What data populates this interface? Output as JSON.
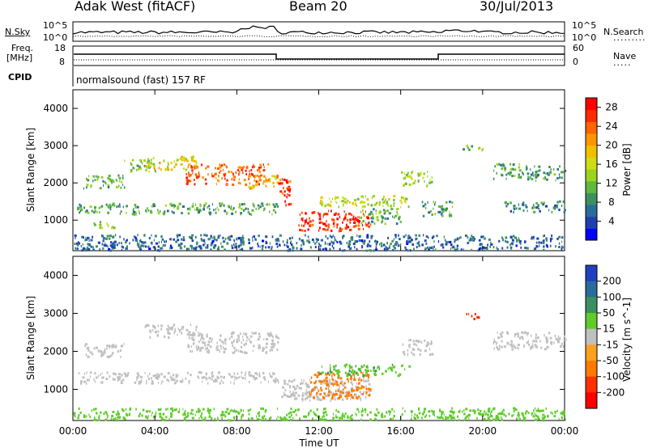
{
  "header": {
    "station": "Adak West (fitACF)",
    "beam": "Beam 20",
    "date": "30/Jul/2013"
  },
  "noise_panel": {
    "left_label": "N.Sky",
    "right_label": "N.Search",
    "tick_top": "10^5",
    "tick_bottom": "10^0"
  },
  "freq_panel": {
    "left_label_line1": "Freq.",
    "left_label_line2": "[MHz]",
    "left_ticks": [
      "18",
      "8"
    ],
    "right_ticks": [
      "60",
      "0"
    ],
    "right_label": "Nave",
    "cpid_label": "CPID"
  },
  "cpid": {
    "text": "normalsound (fast) 157 RF"
  },
  "x_axis": {
    "label": "Time UT",
    "ticks": [
      "00:00",
      "04:00",
      "08:00",
      "12:00",
      "16:00",
      "20:00",
      "00:00"
    ]
  },
  "chart_data": [
    {
      "type": "heatmap",
      "title": "Power",
      "xlabel": "Time UT",
      "ylabel": "Slant Range [km]",
      "x_range_hours": [
        0,
        24
      ],
      "y_range_km": [
        180,
        4500
      ],
      "y_ticks": [
        1000,
        2000,
        3000,
        4000
      ],
      "colorbar": {
        "label": "Power [dB]",
        "ticks": [
          4,
          8,
          12,
          16,
          20,
          24,
          28
        ],
        "range": [
          0,
          30
        ],
        "colors": [
          "#0000ff",
          "#1e3fb0",
          "#2a6b9c",
          "#3e8f60",
          "#5fb93c",
          "#9ad41e",
          "#d0dc14",
          "#f0c000",
          "#ff9600",
          "#ff6400",
          "#ff2a00",
          "#ff0000"
        ]
      },
      "regions": [
        {
          "t": [
            0.5,
            2.5
          ],
          "r": [
            1850,
            2200
          ],
          "value": 10
        },
        {
          "t": [
            2.5,
            4.0
          ],
          "r": [
            2300,
            2650
          ],
          "value": 12
        },
        {
          "t": [
            3.5,
            6.0
          ],
          "r": [
            2350,
            2700
          ],
          "value": 18
        },
        {
          "t": [
            5.5,
            9.5
          ],
          "r": [
            1950,
            2500
          ],
          "value": 24
        },
        {
          "t": [
            8.5,
            10.0
          ],
          "r": [
            1850,
            2200
          ],
          "value": 20
        },
        {
          "t": [
            0.2,
            10.0
          ],
          "r": [
            1150,
            1450
          ],
          "value": 10
        },
        {
          "t": [
            1.0,
            2.0
          ],
          "r": [
            750,
            950
          ],
          "value": 14
        },
        {
          "t": [
            10.0,
            10.6
          ],
          "r": [
            1350,
            2100
          ],
          "value": 26
        },
        {
          "t": [
            11.0,
            14.5
          ],
          "r": [
            700,
            1250
          ],
          "value": 27
        },
        {
          "t": [
            12.0,
            16.5
          ],
          "r": [
            1350,
            1650
          ],
          "value": 15
        },
        {
          "t": [
            14.0,
            16.0
          ],
          "r": [
            900,
            1300
          ],
          "value": 10
        },
        {
          "t": [
            16.0,
            17.5
          ],
          "r": [
            1900,
            2300
          ],
          "value": 14
        },
        {
          "t": [
            17.0,
            18.5
          ],
          "r": [
            1100,
            1500
          ],
          "value": 10
        },
        {
          "t": [
            19.0,
            20.0
          ],
          "r": [
            2850,
            3000
          ],
          "value": 12
        },
        {
          "t": [
            20.5,
            22.0
          ],
          "r": [
            2100,
            2500
          ],
          "value": 10
        },
        {
          "t": [
            22.0,
            24.0
          ],
          "r": [
            2050,
            2450
          ],
          "value": 10
        },
        {
          "t": [
            21.0,
            24.0
          ],
          "r": [
            1200,
            1500
          ],
          "value": 8
        },
        {
          "t": [
            0.0,
            24.0
          ],
          "r": [
            180,
            600
          ],
          "value": 6
        }
      ]
    },
    {
      "type": "heatmap",
      "title": "Velocity",
      "xlabel": "Time UT",
      "ylabel": "Slant Range [km]",
      "x_range_hours": [
        0,
        24
      ],
      "y_range_km": [
        180,
        4500
      ],
      "y_ticks": [
        1000,
        2000,
        3000,
        4000
      ],
      "colorbar": {
        "label": "Velocity [m s^-1]",
        "ticks": [
          200,
          100,
          50,
          15,
          -15,
          -50,
          -100,
          -200
        ],
        "colors": [
          "#2040c0",
          "#2a6b9c",
          "#3e8f60",
          "#5fcc2a",
          "#c0c0c0",
          "#ffa020",
          "#ff7a00",
          "#ff3000",
          "#ff0000"
        ]
      },
      "regions": [
        {
          "t": [
            0.5,
            2.5
          ],
          "r": [
            1850,
            2200
          ],
          "value": 0
        },
        {
          "t": [
            3.5,
            6.0
          ],
          "r": [
            2350,
            2700
          ],
          "value": 0
        },
        {
          "t": [
            5.5,
            10.0
          ],
          "r": [
            1950,
            2500
          ],
          "value": 0
        },
        {
          "t": [
            0.2,
            10.0
          ],
          "r": [
            1150,
            1450
          ],
          "value": 0
        },
        {
          "t": [
            10.0,
            14.5
          ],
          "r": [
            700,
            1250
          ],
          "value": -5
        },
        {
          "t": [
            11.5,
            14.5
          ],
          "r": [
            750,
            1450
          ],
          "value": -70
        },
        {
          "t": [
            12.0,
            16.5
          ],
          "r": [
            1350,
            1650
          ],
          "value": 30
        },
        {
          "t": [
            16.0,
            17.5
          ],
          "r": [
            1900,
            2300
          ],
          "value": 0
        },
        {
          "t": [
            19.0,
            19.8
          ],
          "r": [
            2850,
            3000
          ],
          "value": -200
        },
        {
          "t": [
            20.5,
            24.0
          ],
          "r": [
            2050,
            2500
          ],
          "value": 0
        },
        {
          "t": [
            0.0,
            24.0
          ],
          "r": [
            180,
            500
          ],
          "value": 25
        }
      ]
    }
  ]
}
